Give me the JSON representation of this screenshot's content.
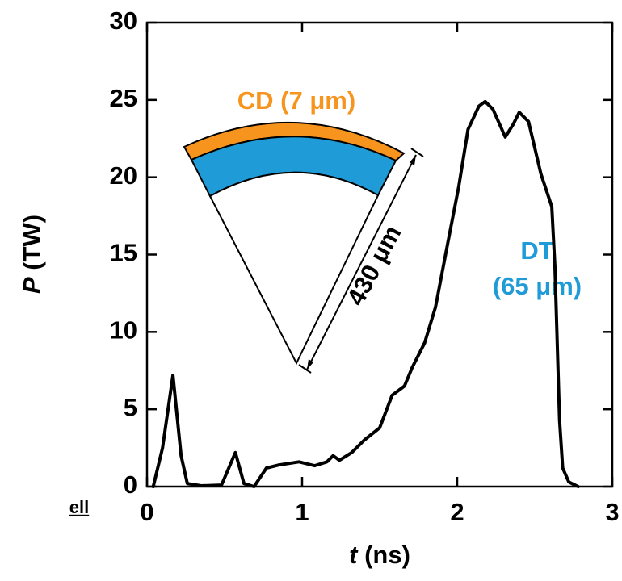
{
  "chart_data": {
    "type": "line",
    "xlabel": {
      "var": "t",
      "unit": "(ns)"
    },
    "ylabel": {
      "var": "P",
      "unit": "(TW)"
    },
    "x": [
      0.04,
      0.1,
      0.167,
      0.22,
      0.26,
      0.35,
      0.48,
      0.57,
      0.625,
      0.69,
      0.77,
      0.85,
      0.98,
      1.08,
      1.16,
      1.2,
      1.24,
      1.32,
      1.4,
      1.5,
      1.58,
      1.66,
      1.71,
      1.79,
      1.86,
      1.94,
      2.01,
      2.07,
      2.14,
      2.18,
      2.23,
      2.31,
      2.36,
      2.4,
      2.46,
      2.54,
      2.61,
      2.63,
      2.66,
      2.68,
      2.72,
      2.78
    ],
    "values": [
      0,
      2.5,
      7.2,
      2.0,
      0.2,
      0.05,
      0.1,
      2.2,
      0.2,
      0,
      1.2,
      1.4,
      1.6,
      1.35,
      1.6,
      2.0,
      1.7,
      2.2,
      3.0,
      3.8,
      5.9,
      6.5,
      7.7,
      9.3,
      11.6,
      15.8,
      19.4,
      23.1,
      24.6,
      24.9,
      24.4,
      22.6,
      23.4,
      24.2,
      23.6,
      20.2,
      18.1,
      14.2,
      4.3,
      1.2,
      0.3,
      0
    ],
    "color": "#000000",
    "xlim": [
      0,
      3
    ],
    "xticks": [
      0,
      1,
      2,
      3
    ],
    "ylim": [
      0,
      30
    ],
    "yticks": [
      0,
      5,
      10,
      15,
      20,
      25,
      30
    ],
    "annotations": [
      "CD (7 μm)",
      "DT",
      "(65 μm)",
      "430 μm",
      "ell"
    ]
  }
}
